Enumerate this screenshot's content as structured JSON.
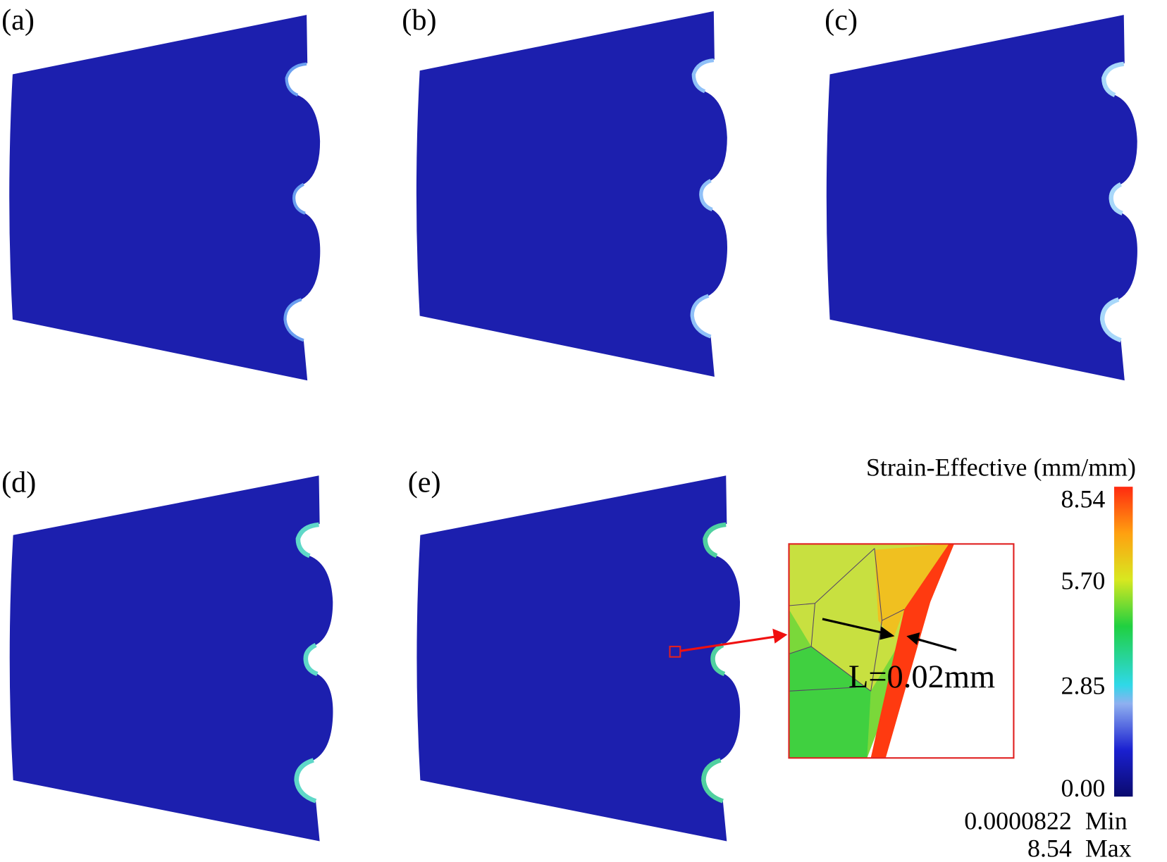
{
  "panels": [
    {
      "label": "(a)"
    },
    {
      "label": "(b)"
    },
    {
      "label": "(c)"
    },
    {
      "label": "(d)"
    },
    {
      "label": "(e)"
    }
  ],
  "inset": {
    "annotation": "L=0.02mm"
  },
  "colorbar": {
    "title": "Strain-Effective (mm/mm)",
    "ticks": [
      "8.54",
      "5.70",
      "2.85",
      "0.00"
    ],
    "min": {
      "value": "0.0000822",
      "label": "Min"
    },
    "max": {
      "value": "8.54",
      "label": "Max"
    }
  }
}
